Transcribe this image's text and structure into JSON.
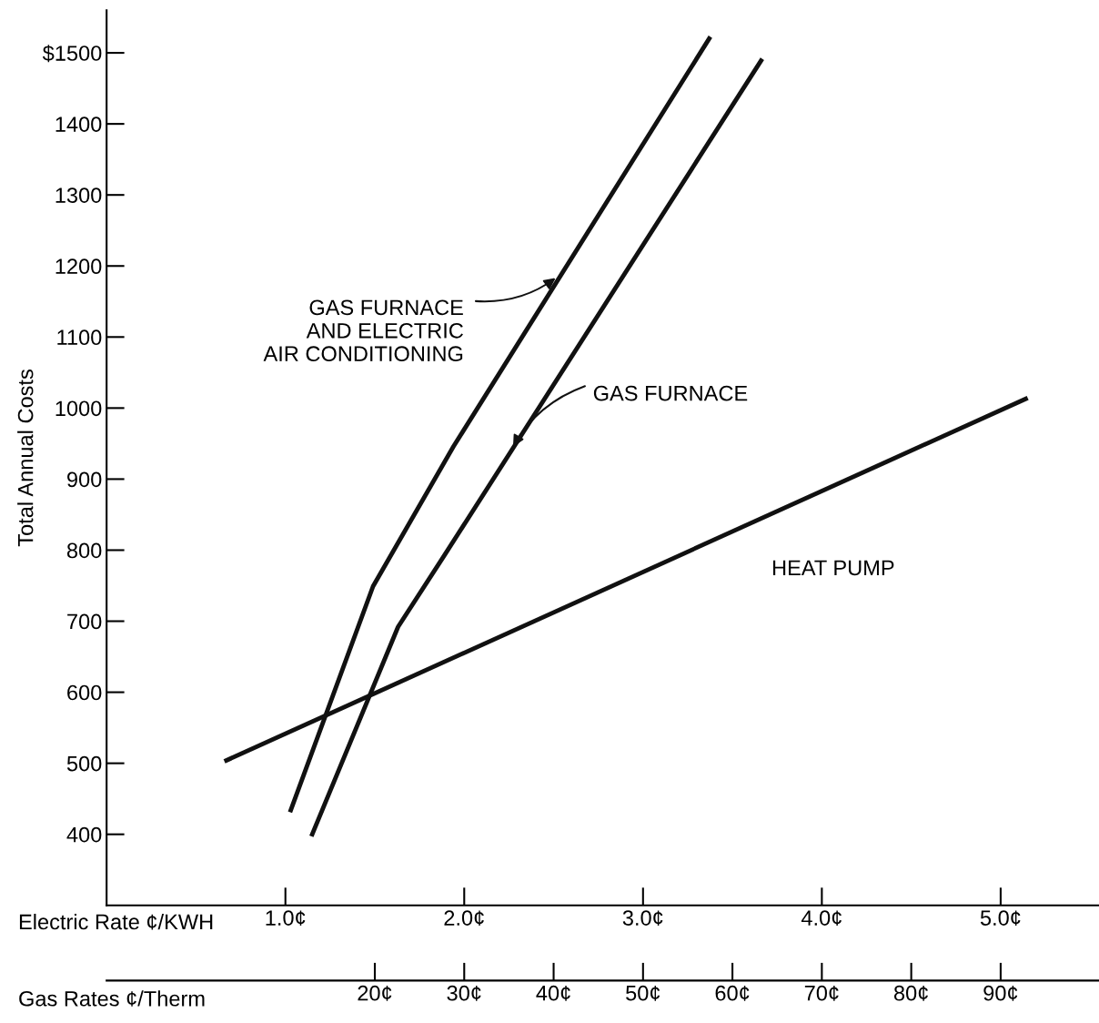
{
  "chart_data": {
    "type": "line",
    "ylabel": "Total Annual Costs",
    "xlabel": "Electric Rate ¢/KWH",
    "x2label": "Gas Rates ¢/Therm",
    "xlim": [
      0,
      5.55
    ],
    "xticks": [
      {
        "value": 1,
        "label": "1.0¢"
      },
      {
        "value": 2,
        "label": "2.0¢"
      },
      {
        "value": 3,
        "label": "3.0¢"
      },
      {
        "value": 4,
        "label": "4.0¢"
      },
      {
        "value": 5,
        "label": "5.0¢"
      }
    ],
    "x2lim": [
      -10,
      101
    ],
    "x2ticks": [
      {
        "value": 20,
        "label": "20¢"
      },
      {
        "value": 30,
        "label": "30¢"
      },
      {
        "value": 40,
        "label": "40¢"
      },
      {
        "value": 50,
        "label": "50¢"
      },
      {
        "value": 60,
        "label": "60¢"
      },
      {
        "value": 70,
        "label": "70¢"
      },
      {
        "value": 80,
        "label": "80¢"
      },
      {
        "value": 90,
        "label": "90¢"
      }
    ],
    "ylim": [
      300,
      1560
    ],
    "yticks": [
      400,
      500,
      600,
      700,
      800,
      900,
      1000,
      1100,
      1200,
      1300,
      1400,
      {
        "value": 1500,
        "label": "$1500"
      }
    ],
    "grid": false,
    "legend": false,
    "marker": "none",
    "line_style": "solid",
    "series": [
      {
        "name": "GAS FURNACE\nAND ELECTRIC\nAIR CONDITIONING",
        "color": "#111111",
        "x": [
          1.03,
          1.49,
          1.94,
          3.37
        ],
        "values": [
          434,
          749,
          946,
          1520
        ]
      },
      {
        "name": "GAS FURNACE",
        "color": "#111111",
        "x": [
          1.15,
          1.63,
          1.89,
          3.66
        ],
        "values": [
          400,
          692,
          793,
          1489
        ]
      },
      {
        "name": "HEAT PUMP",
        "color": "#111111",
        "x": [
          0.67,
          5.14
        ],
        "values": [
          504,
          1013
        ]
      }
    ]
  }
}
